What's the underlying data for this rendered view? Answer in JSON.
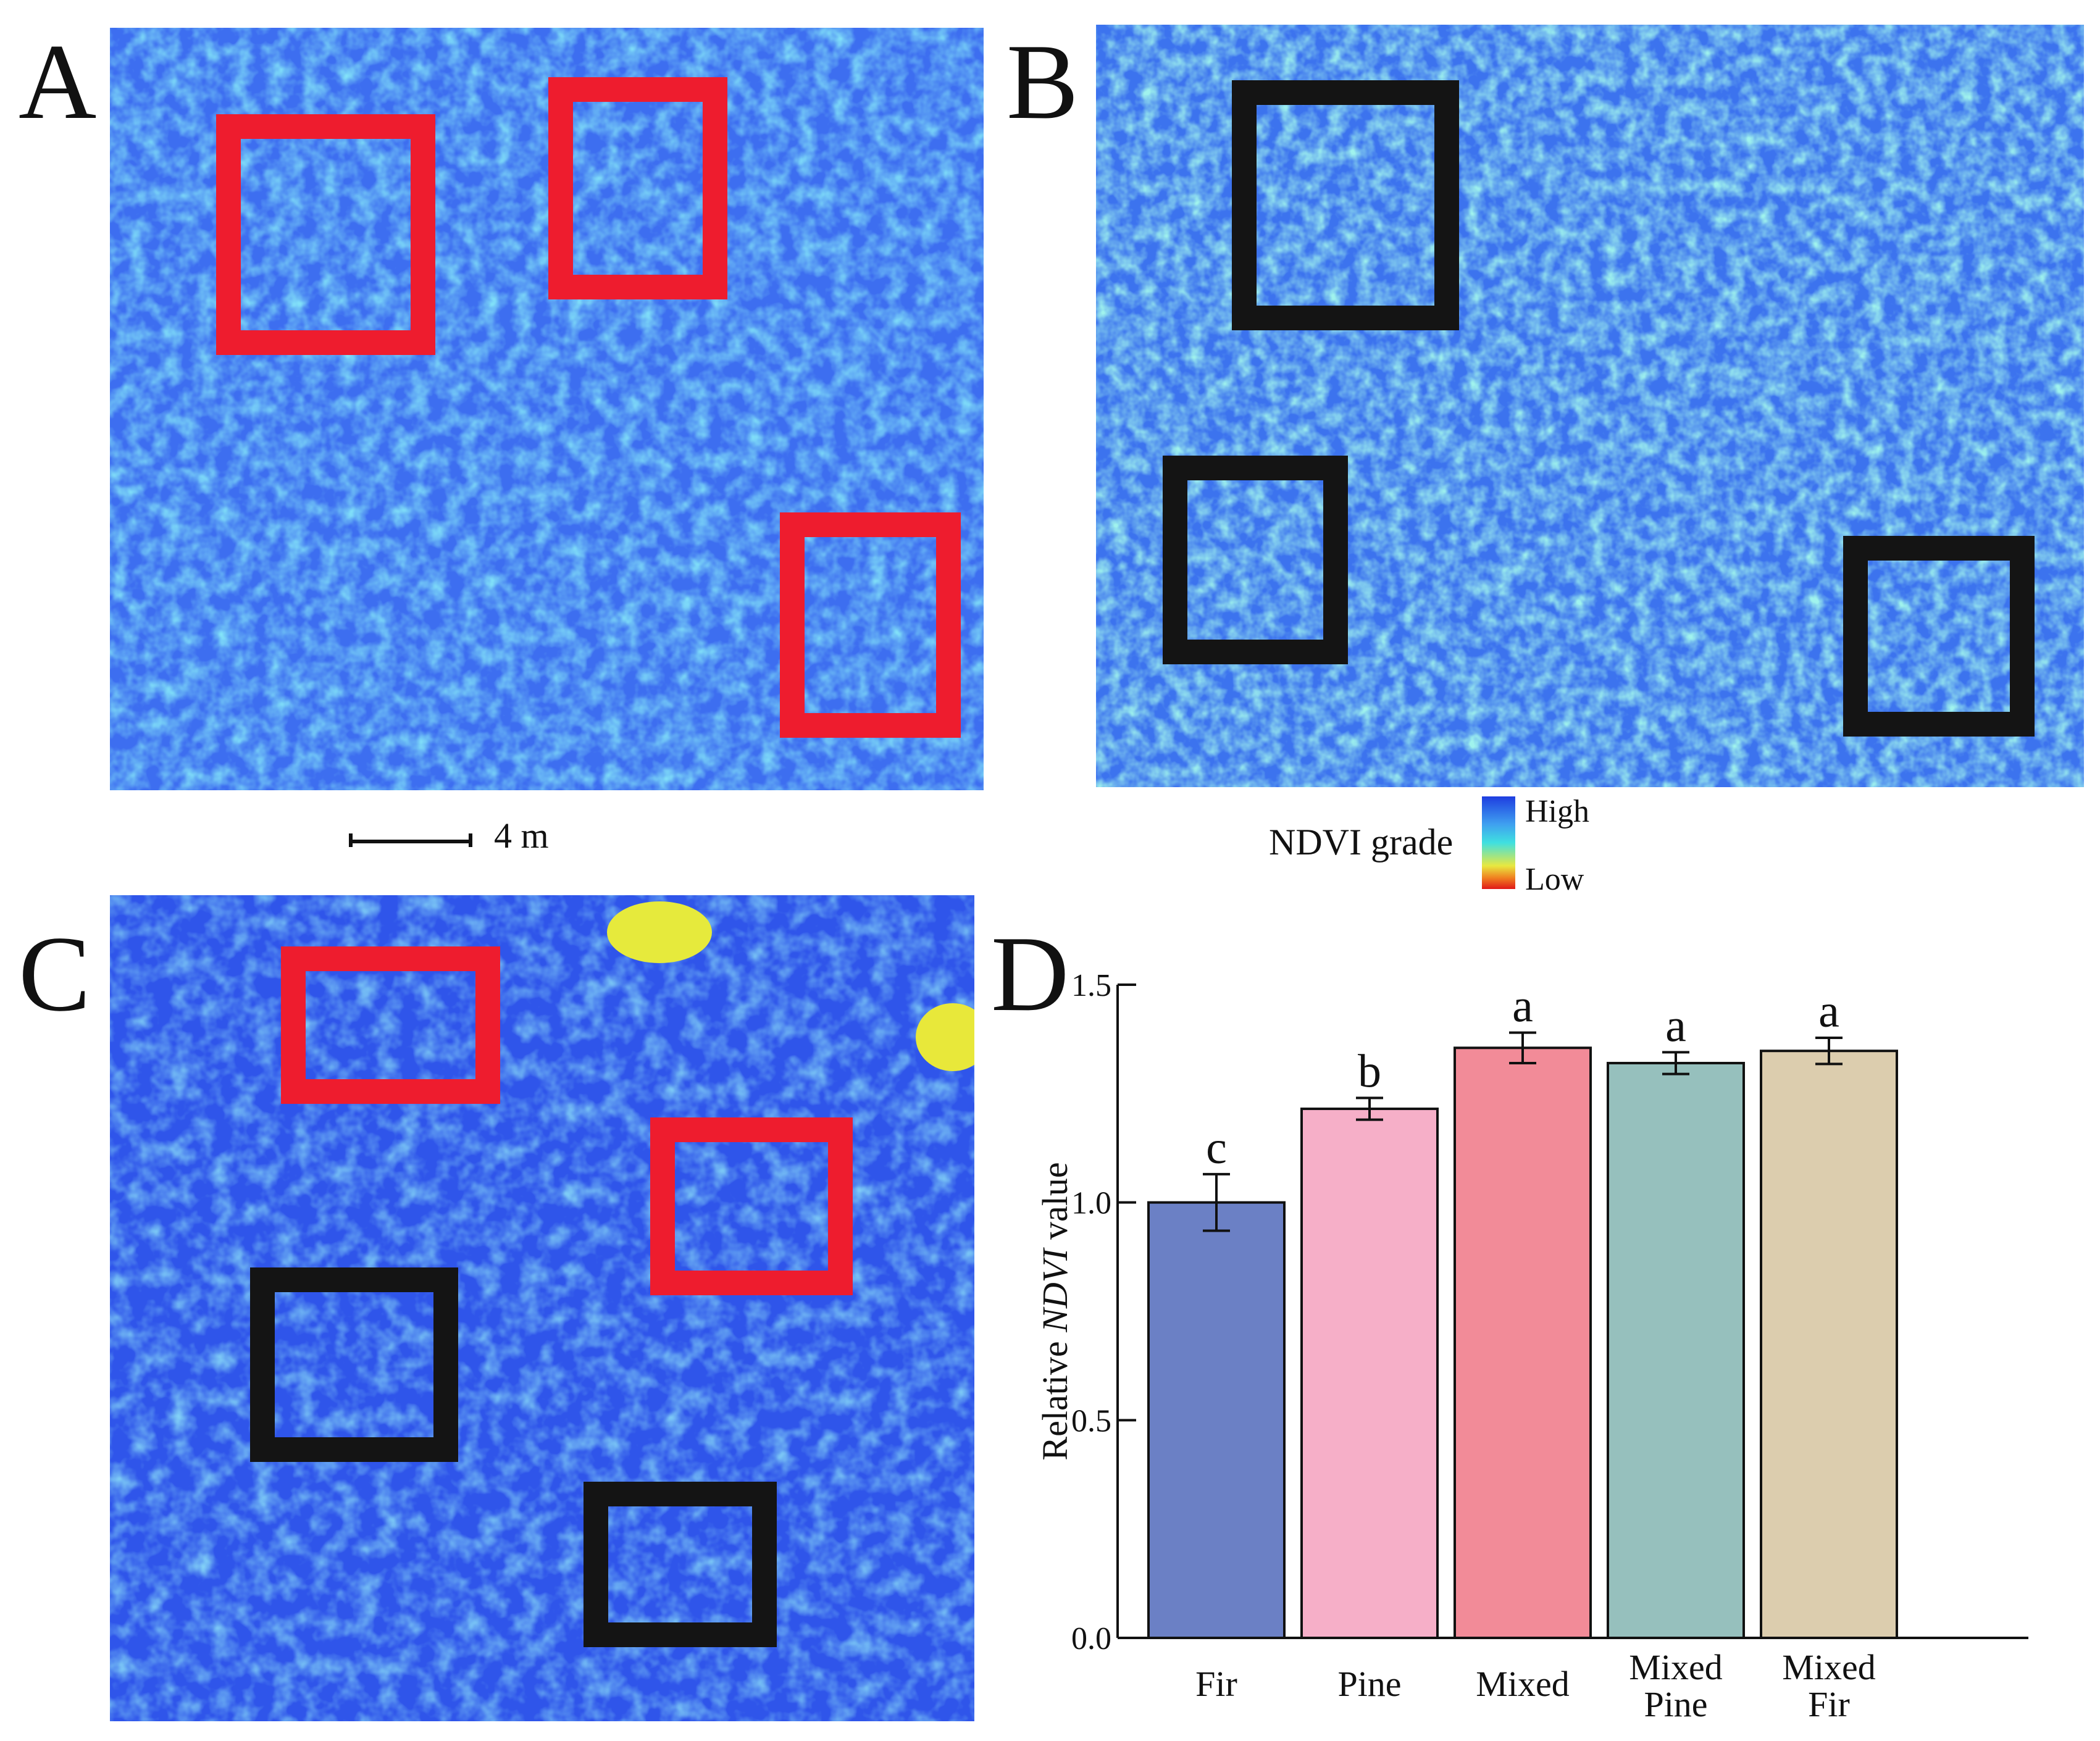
{
  "panels": {
    "a": {
      "letter": "A"
    },
    "b": {
      "letter": "B"
    },
    "c": {
      "letter": "C"
    },
    "d": {
      "letter": "D"
    }
  },
  "scale": {
    "label": "4 m"
  },
  "legend": {
    "title": "NDVI grade",
    "high": "High",
    "low": "Low"
  },
  "colors": {
    "frame_red": "#ee1c2e",
    "frame_black": "#141414",
    "map_base": "#3d6ef0"
  },
  "chart_data": {
    "type": "bar",
    "title": "",
    "categories": [
      "Fir",
      "Pine",
      "Mixed",
      "Mixed\nPine",
      "Mixed\nFir"
    ],
    "values": [
      1.0,
      1.215,
      1.355,
      1.32,
      1.348
    ],
    "errors": [
      0.065,
      0.025,
      0.035,
      0.025,
      0.03
    ],
    "significance": [
      "c",
      "b",
      "a",
      "a",
      "a"
    ],
    "bar_colors": [
      "#6b80c5",
      "#f6afc8",
      "#f28b98",
      "#96c0bd",
      "#dccdae"
    ],
    "xlabel": "",
    "ylabel_prefix": "Relative ",
    "ylabel_italic": "NDVI",
    "ylabel_suffix": " value",
    "ylim": [
      0,
      1.5
    ],
    "yticks": [
      "0.0",
      "0.5",
      "1.0",
      "1.5"
    ],
    "ytick_values": [
      0,
      0.5,
      1.0,
      1.5
    ]
  }
}
